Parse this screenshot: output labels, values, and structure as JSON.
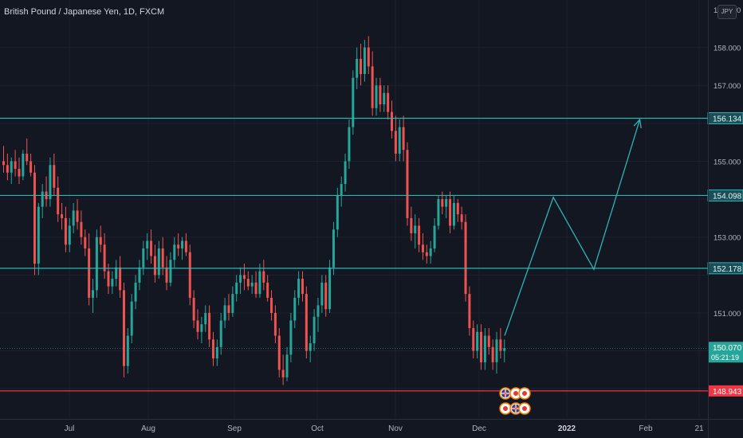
{
  "header": {
    "symbol_title": "British Pound / Japanese Yen, 1D, FXCM",
    "currency": "JPY"
  },
  "colors": {
    "background": "#131722",
    "grid": "#1c2030",
    "up": "#26a69a",
    "down": "#ef5350",
    "level_line": "#2bb5b5",
    "support_line": "#f23645",
    "axis_text": "#b2b5be"
  },
  "price_axis": {
    "labels": [
      "158.000",
      "157.000",
      "155.000",
      "153.000",
      "151.000"
    ],
    "top_partial": "159.000",
    "min": 148.5,
    "max": 159.0
  },
  "time_axis": {
    "labels": [
      "Jul",
      "Aug",
      "Sep",
      "Oct",
      "Nov",
      "Dec",
      "2022",
      "Feb",
      "21"
    ]
  },
  "levels": [
    {
      "name": "resistance-1",
      "value": "156.134",
      "price": 156.134
    },
    {
      "name": "resistance-2",
      "value": "154.098",
      "price": 154.098
    },
    {
      "name": "resistance-3",
      "value": "152.178",
      "price": 152.178
    }
  ],
  "support": {
    "value": "148.943",
    "price": 148.943
  },
  "current_price": {
    "value": "150.070",
    "countdown": "05:21:19",
    "price": 150.07
  },
  "projection_path": [
    {
      "date": "2021-12-09",
      "price": 150.4
    },
    {
      "date": "2021-12-27",
      "price": 154.05
    },
    {
      "date": "2022-01-11",
      "price": 152.15
    },
    {
      "date": "2022-01-28",
      "price": 156.1
    }
  ],
  "flags_icons": [
    "gb-flag-icon",
    "jp-flag-icon",
    "eu-flag-icon",
    "us-flag-icon"
  ],
  "candles": [
    [
      155.0,
      155.4,
      154.7,
      154.9
    ],
    [
      154.9,
      155.2,
      154.5,
      154.7
    ],
    [
      154.7,
      155.1,
      154.4,
      155.0
    ],
    [
      155.0,
      155.3,
      154.6,
      154.8
    ],
    [
      154.8,
      155.1,
      154.4,
      154.6
    ],
    [
      154.6,
      155.3,
      154.5,
      155.2
    ],
    [
      155.2,
      155.6,
      154.9,
      155.0
    ],
    [
      155.0,
      155.2,
      154.6,
      154.7
    ],
    [
      154.7,
      154.9,
      152.0,
      152.3
    ],
    [
      152.3,
      153.9,
      152.0,
      153.8
    ],
    [
      153.8,
      154.4,
      153.5,
      154.2
    ],
    [
      154.2,
      154.6,
      153.8,
      154.0
    ],
    [
      154.0,
      155.1,
      153.8,
      154.9
    ],
    [
      154.9,
      155.2,
      154.1,
      154.3
    ],
    [
      154.3,
      154.6,
      153.4,
      153.6
    ],
    [
      153.6,
      153.9,
      153.2,
      153.5
    ],
    [
      153.5,
      153.8,
      152.6,
      152.8
    ],
    [
      152.8,
      153.5,
      152.6,
      153.3
    ],
    [
      153.3,
      153.9,
      153.1,
      153.7
    ],
    [
      153.7,
      154.0,
      153.2,
      153.4
    ],
    [
      153.4,
      153.7,
      152.8,
      153.0
    ],
    [
      153.0,
      153.2,
      152.5,
      152.7
    ],
    [
      152.7,
      153.1,
      151.2,
      151.4
    ],
    [
      151.4,
      151.9,
      151.0,
      151.6
    ],
    [
      151.6,
      153.2,
      151.4,
      153.0
    ],
    [
      153.0,
      153.3,
      152.6,
      152.8
    ],
    [
      152.8,
      153.1,
      151.9,
      152.1
    ],
    [
      152.1,
      152.3,
      151.5,
      151.7
    ],
    [
      151.7,
      152.1,
      151.5,
      151.9
    ],
    [
      151.9,
      152.4,
      151.7,
      152.2
    ],
    [
      152.2,
      152.5,
      151.4,
      151.6
    ],
    [
      151.6,
      151.8,
      149.3,
      149.6
    ],
    [
      149.6,
      150.6,
      149.4,
      150.4
    ],
    [
      150.4,
      151.5,
      150.2,
      151.3
    ],
    [
      151.3,
      152.0,
      151.1,
      151.8
    ],
    [
      151.8,
      152.4,
      151.6,
      152.2
    ],
    [
      152.2,
      152.9,
      152.0,
      152.7
    ],
    [
      152.7,
      153.1,
      152.4,
      152.9
    ],
    [
      152.9,
      153.2,
      152.3,
      152.5
    ],
    [
      152.5,
      152.8,
      151.8,
      152.0
    ],
    [
      152.0,
      152.9,
      151.9,
      152.7
    ],
    [
      152.7,
      153.0,
      152.0,
      152.2
    ],
    [
      152.2,
      152.5,
      151.6,
      151.8
    ],
    [
      151.8,
      152.6,
      151.7,
      152.4
    ],
    [
      152.4,
      153.0,
      152.2,
      152.8
    ],
    [
      152.8,
      153.1,
      152.5,
      152.7
    ],
    [
      152.7,
      153.0,
      152.4,
      152.9
    ],
    [
      152.9,
      153.1,
      152.5,
      152.6
    ],
    [
      152.6,
      152.8,
      151.2,
      151.4
    ],
    [
      151.4,
      151.6,
      150.6,
      150.8
    ],
    [
      150.8,
      151.1,
      150.3,
      150.5
    ],
    [
      150.5,
      150.9,
      150.2,
      150.7
    ],
    [
      150.7,
      151.2,
      150.5,
      151.0
    ],
    [
      151.0,
      151.2,
      150.1,
      150.3
    ],
    [
      150.3,
      150.5,
      149.6,
      149.8
    ],
    [
      149.8,
      150.3,
      149.6,
      150.1
    ],
    [
      150.1,
      151.0,
      149.9,
      150.8
    ],
    [
      150.8,
      151.4,
      150.6,
      151.2
    ],
    [
      151.2,
      151.5,
      150.8,
      151.0
    ],
    [
      151.0,
      151.7,
      150.9,
      151.5
    ],
    [
      151.5,
      152.0,
      151.3,
      151.8
    ],
    [
      151.8,
      152.2,
      151.5,
      152.0
    ],
    [
      152.0,
      152.3,
      151.6,
      151.9
    ],
    [
      151.9,
      152.1,
      151.6,
      151.7
    ],
    [
      151.7,
      152.0,
      151.5,
      151.8
    ],
    [
      151.8,
      152.1,
      151.4,
      151.5
    ],
    [
      151.5,
      152.3,
      151.4,
      152.1
    ],
    [
      152.1,
      152.4,
      151.6,
      151.8
    ],
    [
      151.8,
      152.0,
      151.3,
      151.4
    ],
    [
      151.4,
      151.6,
      150.8,
      151.0
    ],
    [
      151.0,
      151.2,
      150.2,
      150.4
    ],
    [
      150.4,
      150.6,
      149.3,
      149.5
    ],
    [
      149.5,
      149.9,
      149.1,
      149.3
    ],
    [
      149.3,
      150.1,
      149.2,
      149.9
    ],
    [
      149.9,
      151.0,
      149.7,
      150.8
    ],
    [
      150.8,
      151.6,
      150.6,
      151.4
    ],
    [
      151.4,
      152.1,
      151.2,
      151.9
    ],
    [
      151.9,
      152.1,
      151.3,
      151.5
    ],
    [
      151.5,
      151.7,
      149.8,
      150.0
    ],
    [
      150.0,
      150.4,
      149.7,
      150.2
    ],
    [
      150.2,
      151.1,
      150.0,
      150.9
    ],
    [
      150.9,
      151.4,
      150.5,
      151.2
    ],
    [
      151.2,
      152.0,
      151.0,
      151.8
    ],
    [
      151.8,
      152.0,
      150.9,
      151.1
    ],
    [
      151.1,
      152.4,
      151.0,
      152.2
    ],
    [
      152.2,
      153.4,
      152.0,
      153.2
    ],
    [
      153.2,
      154.3,
      153.0,
      154.1
    ],
    [
      154.1,
      154.6,
      153.8,
      154.4
    ],
    [
      154.4,
      155.2,
      154.2,
      155.0
    ],
    [
      155.0,
      156.1,
      154.8,
      155.9
    ],
    [
      155.9,
      157.4,
      155.7,
      157.2
    ],
    [
      157.2,
      158.0,
      156.9,
      157.7
    ],
    [
      157.7,
      158.1,
      157.0,
      157.3
    ],
    [
      157.3,
      158.2,
      157.1,
      158.0
    ],
    [
      158.0,
      158.3,
      157.3,
      157.5
    ],
    [
      157.5,
      157.9,
      156.2,
      156.4
    ],
    [
      156.4,
      157.2,
      156.2,
      157.0
    ],
    [
      157.0,
      157.2,
      156.3,
      156.5
    ],
    [
      156.5,
      157.0,
      156.3,
      156.8
    ],
    [
      156.8,
      157.0,
      156.1,
      156.3
    ],
    [
      156.3,
      156.6,
      155.6,
      155.8
    ],
    [
      155.8,
      156.2,
      155.0,
      155.2
    ],
    [
      155.2,
      156.1,
      155.0,
      155.9
    ],
    [
      155.9,
      156.2,
      155.0,
      155.3
    ],
    [
      155.3,
      155.5,
      153.3,
      153.5
    ],
    [
      153.5,
      153.8,
      152.9,
      153.1
    ],
    [
      153.1,
      153.6,
      152.7,
      153.3
    ],
    [
      153.3,
      153.5,
      152.6,
      152.8
    ],
    [
      152.8,
      153.1,
      152.4,
      152.6
    ],
    [
      152.6,
      152.8,
      152.3,
      152.5
    ],
    [
      152.5,
      152.9,
      152.3,
      152.7
    ],
    [
      152.7,
      153.5,
      152.6,
      153.3
    ],
    [
      153.3,
      154.1,
      153.2,
      154.0
    ],
    [
      154.0,
      154.2,
      153.6,
      153.8
    ],
    [
      153.8,
      154.1,
      153.5,
      154.0
    ],
    [
      154.0,
      154.2,
      153.1,
      153.3
    ],
    [
      153.3,
      154.1,
      153.2,
      153.9
    ],
    [
      153.9,
      154.0,
      153.4,
      153.6
    ],
    [
      153.6,
      153.8,
      153.2,
      153.4
    ],
    [
      153.4,
      153.6,
      151.3,
      151.5
    ],
    [
      151.5,
      151.7,
      150.4,
      150.6
    ],
    [
      150.6,
      150.8,
      149.8,
      150.0
    ],
    [
      150.0,
      150.7,
      149.8,
      150.5
    ],
    [
      150.5,
      150.7,
      149.5,
      149.7
    ],
    [
      149.7,
      150.6,
      149.5,
      150.4
    ],
    [
      150.4,
      150.6,
      149.9,
      150.1
    ],
    [
      150.1,
      150.3,
      149.5,
      149.7
    ],
    [
      149.7,
      150.5,
      149.4,
      150.3
    ],
    [
      150.3,
      150.6,
      149.8,
      150.0
    ],
    [
      150.0,
      150.3,
      149.7,
      150.07
    ]
  ]
}
